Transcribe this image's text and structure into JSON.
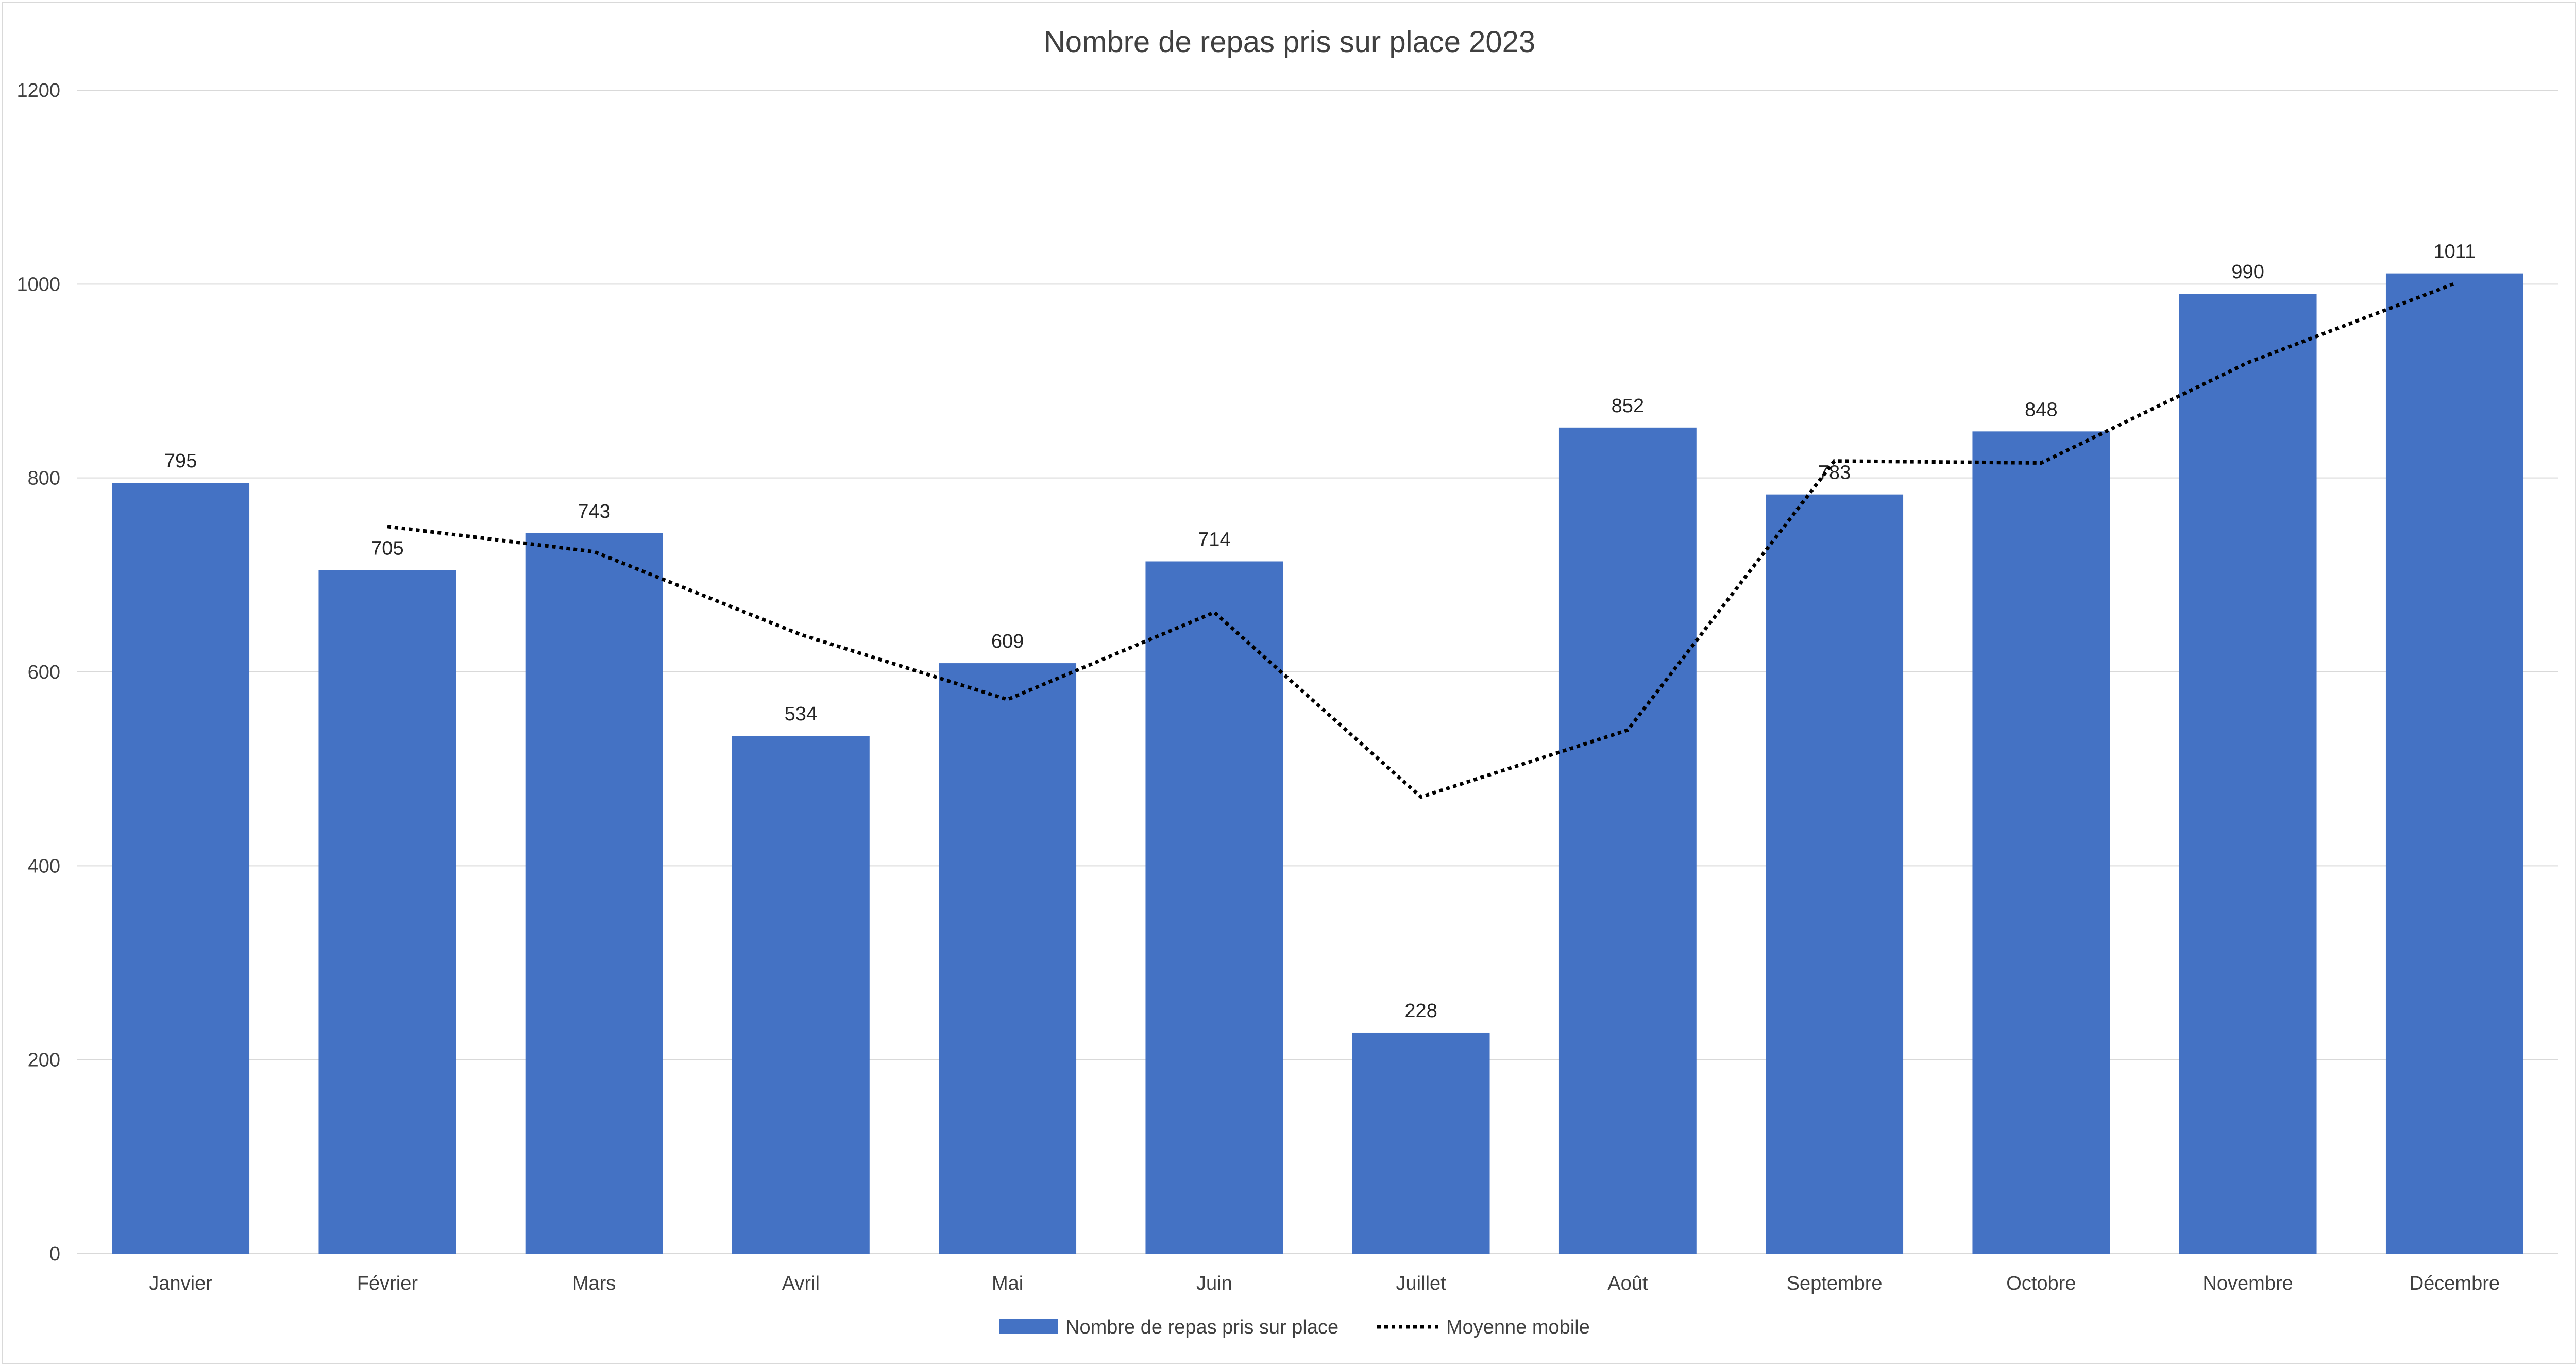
{
  "chart_data": {
    "type": "bar",
    "title": "Nombre de repas pris sur place 2023",
    "xlabel": "",
    "ylabel": "",
    "ylim": [
      0,
      1200
    ],
    "y_ticks": [
      "0",
      "200",
      "400",
      "600",
      "800",
      "1000",
      "1200"
    ],
    "grid": true,
    "legend_position": "bottom",
    "categories": [
      "Janvier",
      "Février",
      "Mars",
      "Avril",
      "Mai",
      "Juin",
      "Juillet",
      "Août",
      "Septembre",
      "Octobre",
      "Novembre",
      "Décembre"
    ],
    "series": [
      {
        "name": "Nombre de repas pris sur place",
        "type": "bar",
        "color": "#4472c4",
        "values": [
          795,
          705,
          743,
          534,
          609,
          714,
          228,
          852,
          783,
          848,
          990,
          1011
        ],
        "data_labels": [
          "795",
          "705",
          "743",
          "534",
          "609",
          "714",
          "228",
          "852",
          "783",
          "848",
          "990",
          "1011"
        ]
      },
      {
        "name": "Moyenne mobile",
        "type": "line",
        "style": "dotted",
        "color": "#000000",
        "values": [
          null,
          750,
          724,
          638.5,
          571.5,
          661.5,
          471,
          540,
          817.5,
          815.5,
          919,
          1000.5
        ]
      }
    ]
  }
}
